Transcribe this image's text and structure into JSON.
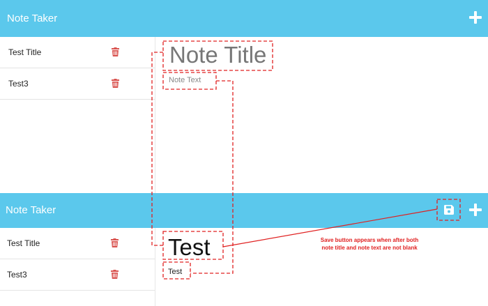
{
  "app": {
    "brand": "Note Taker"
  },
  "notes": [
    {
      "title": "Test Title"
    },
    {
      "title": "Test3"
    }
  ],
  "editor_empty": {
    "title_placeholder": "Note Title",
    "text_placeholder": "Note Text"
  },
  "editor_filled": {
    "title_value": "Test",
    "text_value": "Test"
  },
  "annotation": {
    "line1": "Save button appears when after both",
    "line2": "note title and note text are not blank"
  },
  "icons": {
    "add": "plus-icon",
    "delete": "trash-icon",
    "save": "floppy-disk-icon"
  },
  "colors": {
    "navbar": "#5bc8ec",
    "trash": "#d9534f",
    "annotation": "#e02020"
  }
}
